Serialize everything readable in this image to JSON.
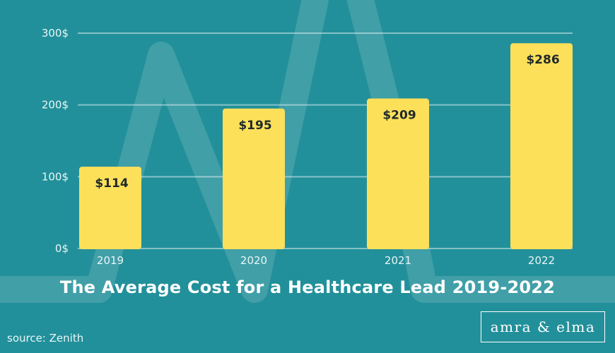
{
  "chart_data": {
    "type": "bar",
    "title": "The Average Cost for a Healthcare Lead 2019-2022",
    "categories": [
      "2019",
      "2020",
      "2021",
      "2022"
    ],
    "values": [
      114,
      195,
      209,
      286
    ],
    "data_labels": [
      "$114",
      "$195",
      "$209",
      "$286"
    ],
    "y_ticks": [
      0,
      100,
      200,
      300
    ],
    "y_tick_labels": [
      "0$",
      "100$",
      "200$",
      "300$"
    ],
    "ylim": [
      0,
      300
    ],
    "xlabel": "",
    "ylabel": "",
    "grid": true,
    "colors": {
      "background": "#22909a",
      "bar": "#fde05a",
      "text": "#ffffff"
    }
  },
  "source": "source: Zenith",
  "brand": "amra & elma"
}
